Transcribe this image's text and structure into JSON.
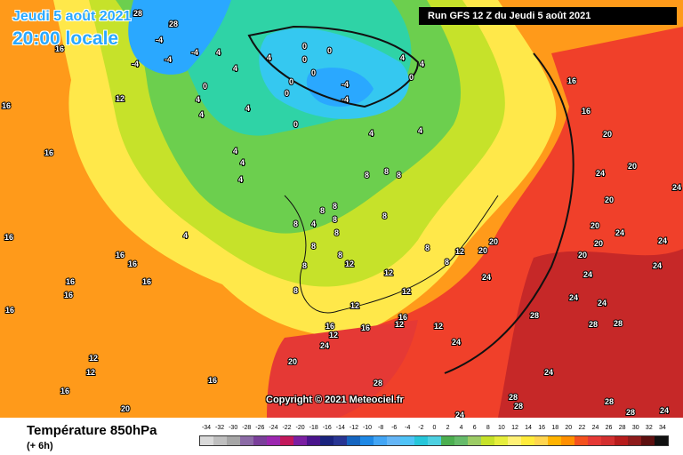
{
  "header": {
    "date": "Jeudi 5 août 2021",
    "time": "20:00 locale",
    "run": "Run GFS 12 Z du Jeudi 5 août 2021"
  },
  "copyright": "Copyright © 2021 Meteociel.fr",
  "legend": {
    "title": "Température 850hPa",
    "subtitle": "(+ 6h)",
    "scale": [
      {
        "value": "-34",
        "color": "#d9d9d9"
      },
      {
        "value": "-32",
        "color": "#bfbfbf"
      },
      {
        "value": "-30",
        "color": "#a6a6a6"
      },
      {
        "value": "-28",
        "color": "#8c6ba6"
      },
      {
        "value": "-26",
        "color": "#7a3f9a"
      },
      {
        "value": "-24",
        "color": "#9c27b0"
      },
      {
        "value": "-22",
        "color": "#c2185b"
      },
      {
        "value": "-20",
        "color": "#7b1fa2"
      },
      {
        "value": "-18",
        "color": "#4a148c"
      },
      {
        "value": "-16",
        "color": "#1a237e"
      },
      {
        "value": "-14",
        "color": "#283593"
      },
      {
        "value": "-12",
        "color": "#1565c0"
      },
      {
        "value": "-10",
        "color": "#1e88e5"
      },
      {
        "value": "-8",
        "color": "#42a5f5"
      },
      {
        "value": "-6",
        "color": "#64b5f6"
      },
      {
        "value": "-4",
        "color": "#4fc3f7"
      },
      {
        "value": "-2",
        "color": "#26c6da"
      },
      {
        "value": "0",
        "color": "#4dd0e1"
      },
      {
        "value": "2",
        "color": "#4caf50"
      },
      {
        "value": "4",
        "color": "#66bb6a"
      },
      {
        "value": "6",
        "color": "#9ccc65"
      },
      {
        "value": "8",
        "color": "#c6e22a"
      },
      {
        "value": "10",
        "color": "#e6ee3c"
      },
      {
        "value": "12",
        "color": "#fff176"
      },
      {
        "value": "14",
        "color": "#ffeb3b"
      },
      {
        "value": "16",
        "color": "#ffd54f"
      },
      {
        "value": "18",
        "color": "#ffb300"
      },
      {
        "value": "20",
        "color": "#ff8f00"
      },
      {
        "value": "22",
        "color": "#f4511e"
      },
      {
        "value": "24",
        "color": "#e53935"
      },
      {
        "value": "26",
        "color": "#d32f2f"
      },
      {
        "value": "28",
        "color": "#b71c1c"
      },
      {
        "value": "30",
        "color": "#8e1b1b"
      },
      {
        "value": "32",
        "color": "#5d1010"
      },
      {
        "value": "34",
        "color": "#111111"
      }
    ]
  },
  "map_labels": [
    "-4",
    "-4",
    "-4",
    "-4",
    "-4",
    "-4",
    "0",
    "0",
    "0",
    "0",
    "0",
    "0",
    "0",
    "0",
    "0",
    "-4",
    "-4",
    "4",
    "4",
    "4",
    "4",
    "4",
    "4",
    "4",
    "4",
    "4",
    "4",
    "4",
    "4",
    "4",
    "4",
    "4",
    "8",
    "8",
    "8",
    "8",
    "8",
    "8",
    "8",
    "8",
    "8",
    "8",
    "8",
    "8",
    "8",
    "8",
    "8",
    "12",
    "12",
    "12",
    "12",
    "12",
    "12",
    "12",
    "12",
    "12",
    "12",
    "12",
    "16",
    "16",
    "16",
    "16",
    "16",
    "16",
    "16",
    "16",
    "16",
    "16",
    "16",
    "16",
    "16",
    "16",
    "16",
    "16",
    "16",
    "20",
    "20",
    "20",
    "20",
    "20",
    "20",
    "20",
    "20",
    "20",
    "20",
    "24",
    "24",
    "24",
    "24",
    "24",
    "24",
    "24",
    "24",
    "24",
    "24",
    "24",
    "24",
    "24",
    "24",
    "28",
    "28",
    "28",
    "28",
    "28",
    "28",
    "28",
    "28",
    "28",
    "28"
  ]
}
